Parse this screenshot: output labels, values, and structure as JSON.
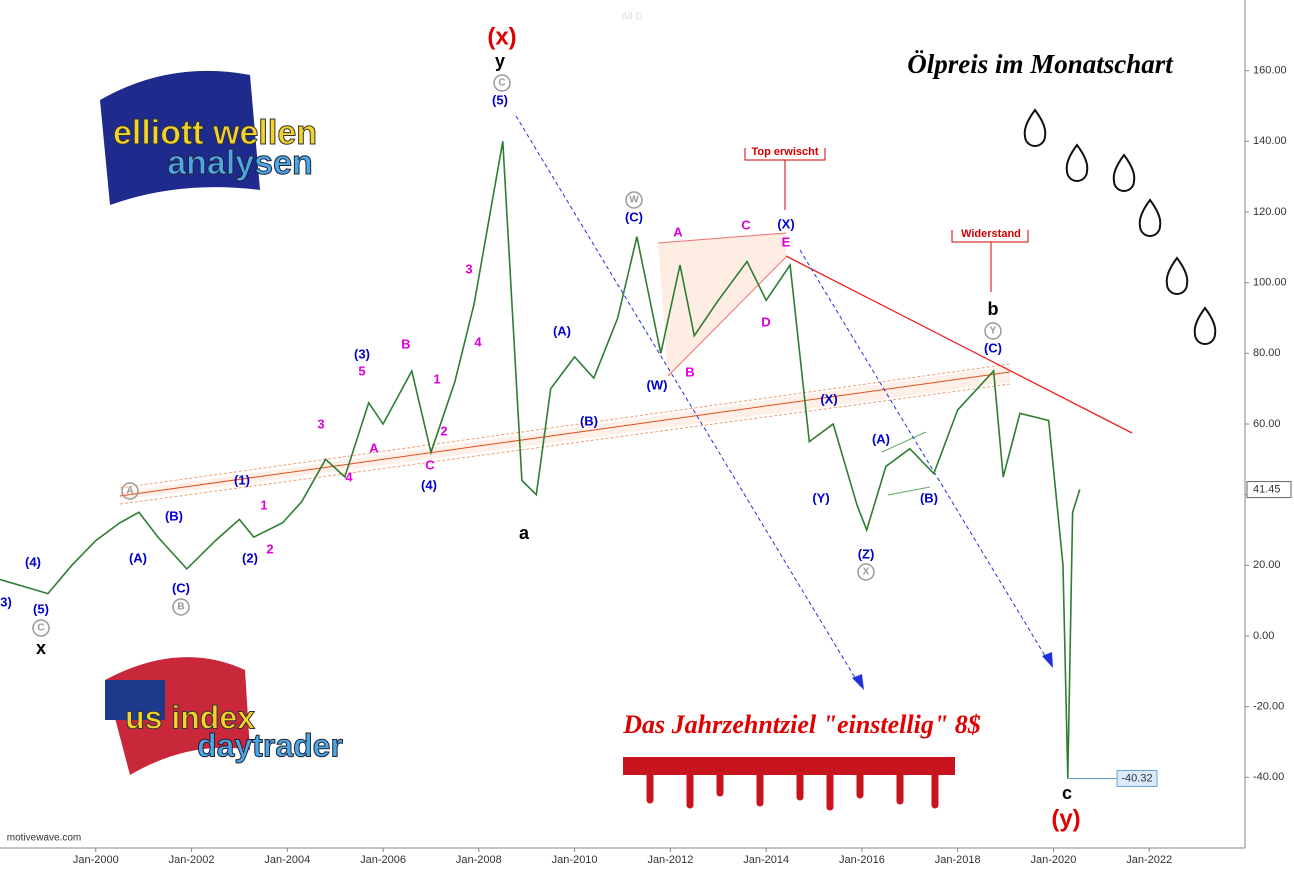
{
  "chart_data": {
    "type": "line",
    "title": "Ölpreis im Monatschart",
    "x": [
      1998.0,
      1998.5,
      1999.0,
      1999.5,
      2000.0,
      2000.5,
      2000.9,
      2001.3,
      2001.9,
      2002.5,
      2003.0,
      2003.3,
      2003.9,
      2004.3,
      2004.8,
      2005.2,
      2005.7,
      2006.0,
      2006.6,
      2007.0,
      2007.5,
      2007.9,
      2008.5,
      2008.9,
      2009.2,
      2009.5,
      2010.0,
      2010.4,
      2010.9,
      2011.3,
      2011.8,
      2012.2,
      2012.5,
      2013.0,
      2013.6,
      2014.0,
      2014.5,
      2014.9,
      2015.4,
      2015.9,
      2016.1,
      2016.5,
      2017.0,
      2017.5,
      2018.0,
      2018.75,
      2018.95,
      2019.3,
      2019.9,
      2020.2,
      2020.3,
      2020.4,
      2020.55
    ],
    "values": [
      16,
      14,
      12,
      20,
      27,
      32,
      35,
      28,
      19,
      27,
      33,
      28,
      32,
      38,
      50,
      45,
      66,
      60,
      75,
      52,
      72,
      94,
      140,
      44,
      40,
      70,
      79,
      73,
      90,
      113,
      80,
      105,
      85,
      95,
      106,
      95,
      105,
      55,
      60,
      37,
      30,
      48,
      53,
      46,
      64,
      75,
      45,
      63,
      61,
      20,
      -40.32,
      35,
      41.45
    ],
    "color": "#2e7d32",
    "xlim": [
      1998,
      2024
    ],
    "ylim": [
      -60,
      180
    ],
    "xticks": [
      {
        "value": 2000,
        "label": "Jan-2000"
      },
      {
        "value": 2002,
        "label": "Jan-2002"
      },
      {
        "value": 2004,
        "label": "Jan-2004"
      },
      {
        "value": 2006,
        "label": "Jan-2006"
      },
      {
        "value": 2008,
        "label": "Jan-2008"
      },
      {
        "value": 2010,
        "label": "Jan-2010"
      },
      {
        "value": 2012,
        "label": "Jan-2012"
      },
      {
        "value": 2014,
        "label": "Jan-2014"
      },
      {
        "value": 2016,
        "label": "Jan-2016"
      },
      {
        "value": 2018,
        "label": "Jan-2018"
      },
      {
        "value": 2020,
        "label": "Jan-2020"
      },
      {
        "value": 2022,
        "label": "Jan-2022"
      }
    ],
    "yticks": [
      {
        "value": -40,
        "label": "-40.00"
      },
      {
        "value": -20,
        "label": "-20.00"
      },
      {
        "value": 0,
        "label": "0.00"
      },
      {
        "value": 20,
        "label": "20.00"
      },
      {
        "value": 40,
        "label": "40.00"
      },
      {
        "value": 60,
        "label": "60.00"
      },
      {
        "value": 80,
        "label": "80.00"
      },
      {
        "value": 100,
        "label": "100.00"
      },
      {
        "value": 120,
        "label": "120.00"
      },
      {
        "value": 140,
        "label": "140.00"
      },
      {
        "value": 160,
        "label": "160.00"
      }
    ],
    "last_price": 41.45,
    "low_price": -40.32
  },
  "annotations": [
    {
      "text": "(x)",
      "color": "#e00000"
    },
    {
      "text": "y",
      "color": "#000000"
    },
    {
      "text": "C",
      "color": "#999999",
      "circled": true
    },
    {
      "text": "(5)",
      "color": "#0000cc"
    },
    {
      "text": "Top erwischt",
      "color": "#d00000"
    },
    {
      "text": "Widerstand",
      "color": "#d00000"
    },
    {
      "text": "W",
      "color": "#999999",
      "circled": true
    },
    {
      "text": "(C)",
      "color": "#0000cc"
    },
    {
      "text": "A",
      "color": "#dd00dd"
    },
    {
      "text": "C",
      "color": "#dd00dd"
    },
    {
      "text": "(X)",
      "color": "#0000cc"
    },
    {
      "text": "E",
      "color": "#dd00dd"
    },
    {
      "text": "B",
      "color": "#dd00dd"
    },
    {
      "text": "D",
      "color": "#dd00dd"
    },
    {
      "text": "(W)",
      "color": "#0000cc"
    },
    {
      "text": "(A)",
      "color": "#0000cc"
    },
    {
      "text": "(B)",
      "color": "#0000cc"
    },
    {
      "text": "a",
      "color": "#000000"
    },
    {
      "text": "(X)",
      "color": "#0000cc"
    },
    {
      "text": "(Y)",
      "color": "#0000cc"
    },
    {
      "text": "(A)",
      "color": "#0000cc"
    },
    {
      "text": "(B)",
      "color": "#0000cc"
    },
    {
      "text": "(Z)",
      "color": "#0000cc"
    },
    {
      "text": "X",
      "color": "#999999",
      "circled": true
    },
    {
      "text": "b",
      "color": "#000000"
    },
    {
      "text": "Y",
      "color": "#999999",
      "circled": true
    },
    {
      "text": "(C)",
      "color": "#0000cc"
    },
    {
      "text": "c",
      "color": "#000000"
    },
    {
      "text": "(y)",
      "color": "#e00000"
    },
    {
      "text": "(4)",
      "color": "#0000cc"
    },
    {
      "text": "3)",
      "color": "#0000cc"
    },
    {
      "text": "(5)",
      "color": "#0000cc"
    },
    {
      "text": "C",
      "color": "#999999",
      "circled": true
    },
    {
      "text": "x",
      "color": "#000000"
    },
    {
      "text": "A",
      "color": "#999999",
      "circled": true
    },
    {
      "text": "(A)",
      "color": "#0000cc"
    },
    {
      "text": "(B)",
      "color": "#0000cc"
    },
    {
      "text": "(C)",
      "color": "#0000cc"
    },
    {
      "text": "B",
      "color": "#999999",
      "circled": true
    },
    {
      "text": "(1)",
      "color": "#0000cc"
    },
    {
      "text": "(2)",
      "color": "#0000cc"
    },
    {
      "text": "1",
      "color": "#dd00dd"
    },
    {
      "text": "2",
      "color": "#dd00dd"
    },
    {
      "text": "3",
      "color": "#dd00dd"
    },
    {
      "text": "4",
      "color": "#dd00dd"
    },
    {
      "text": "(3)",
      "color": "#0000cc"
    },
    {
      "text": "5",
      "color": "#dd00dd"
    },
    {
      "text": "A",
      "color": "#dd00dd"
    },
    {
      "text": "B",
      "color": "#dd00dd"
    },
    {
      "text": "1",
      "color": "#dd00dd"
    },
    {
      "text": "2",
      "color": "#dd00dd"
    },
    {
      "text": "C",
      "color": "#dd00dd"
    },
    {
      "text": "(4)",
      "color": "#0000cc"
    },
    {
      "text": "3",
      "color": "#dd00dd"
    },
    {
      "text": "4",
      "color": "#dd00dd"
    }
  ],
  "target_text": "Das Jahrzehntziel \"einstellig\" 8$",
  "logos": [
    {
      "line1": "elliott wellen",
      "line2": "analysen"
    },
    {
      "line1": "us index",
      "line2": "daytrader"
    }
  ],
  "watermark": "motivewave.com",
  "faint_label": "All D"
}
